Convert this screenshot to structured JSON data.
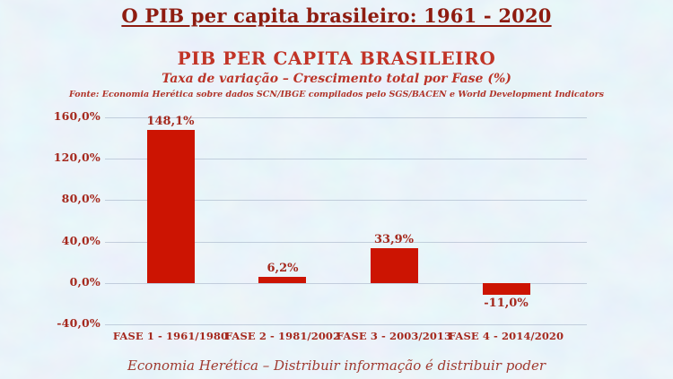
{
  "page": {
    "header_title": "O PIB per capita brasileiro: 1961 - 2020",
    "footer": "Economia Herética – Distribuir informação é distribuir poder",
    "background_color": "#d7e6f4"
  },
  "chart_data": {
    "type": "bar",
    "title": "PIB PER CAPITA BRASILEIRO",
    "subtitle": "Taxa de variação – Crescimento total por Fase (%)",
    "source": "Fonte: Economia Herética sobre dados SCN/IBGE compilados pelo SGS/BACEN e World Development Indicators",
    "categories": [
      "FASE 1 - 1961/1980",
      "FASE 2 - 1981/2002",
      "FASE 3 - 2003/2013",
      "FASE 4 - 2014/2020"
    ],
    "values": [
      148.1,
      6.2,
      33.9,
      -11.0
    ],
    "value_labels": [
      "148,1%",
      "6,2%",
      "33,9%",
      "-11,0%"
    ],
    "ylim": [
      -40,
      160
    ],
    "yticks": [
      160,
      120,
      80,
      40,
      0,
      -40
    ],
    "ytick_labels": [
      "160,0%",
      "120,0%",
      "80,0%",
      "40,0%",
      "0,0%",
      "-40,0%"
    ],
    "grid": true,
    "legend": false,
    "bar_color": "#cc1402",
    "axis_text_color": "#a5291e"
  }
}
